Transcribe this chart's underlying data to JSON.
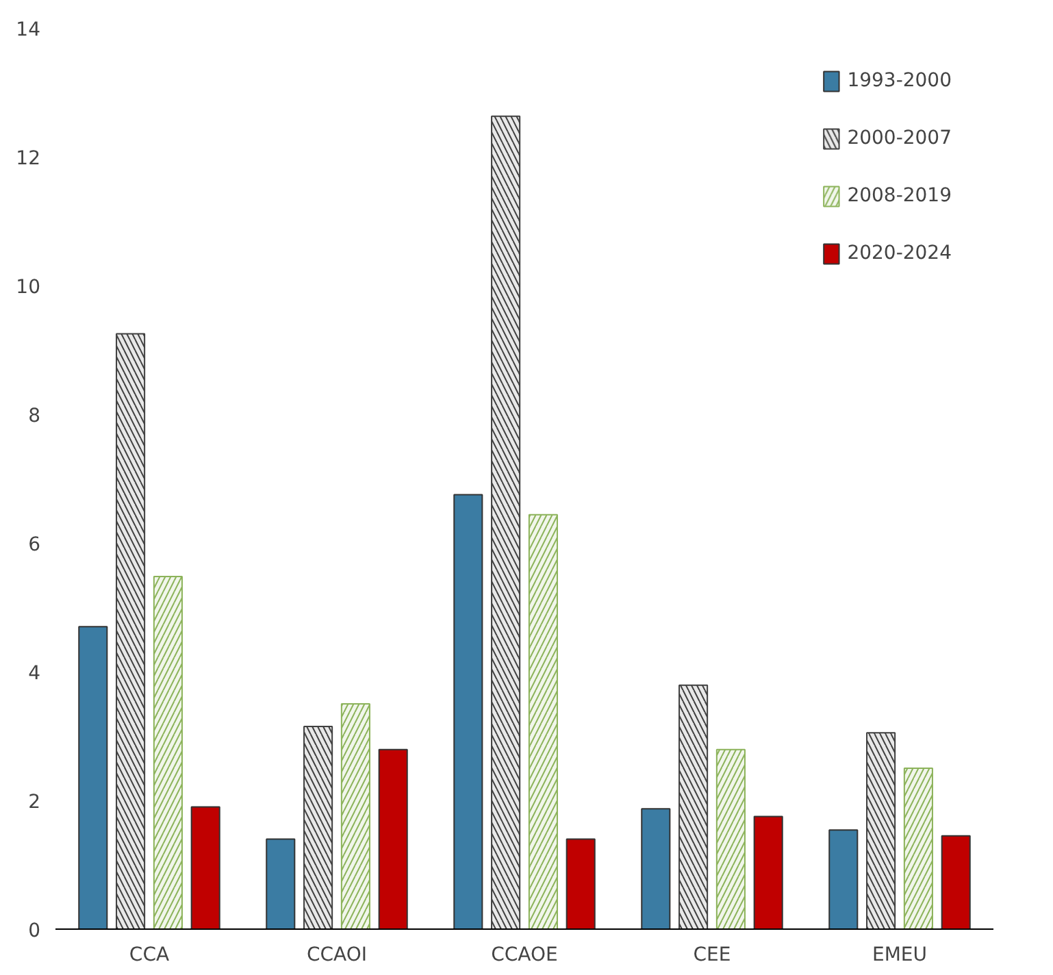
{
  "chart_data": {
    "type": "bar",
    "categories": [
      "CCA",
      "CCAOI",
      "CCAOE",
      "CEE",
      "EMEU"
    ],
    "series": [
      {
        "name": "1993-2000",
        "color": "#3b7ca3",
        "values": [
          4.7,
          1.4,
          6.75,
          1.87,
          1.54
        ]
      },
      {
        "name": "2000-2007",
        "color": "#404040",
        "values": [
          9.25,
          3.15,
          12.63,
          3.79,
          3.05
        ]
      },
      {
        "name": "2008-2019",
        "color": "#8cb35a",
        "values": [
          5.48,
          3.5,
          6.44,
          2.79,
          2.5
        ]
      },
      {
        "name": "2020-2024",
        "color": "#c00000",
        "values": [
          1.9,
          2.79,
          1.4,
          1.75,
          1.45
        ]
      }
    ],
    "ylim": [
      0,
      14
    ],
    "yticks": [
      0,
      2,
      4,
      6,
      8,
      10,
      12,
      14
    ],
    "grid": false,
    "legend": "top right"
  }
}
